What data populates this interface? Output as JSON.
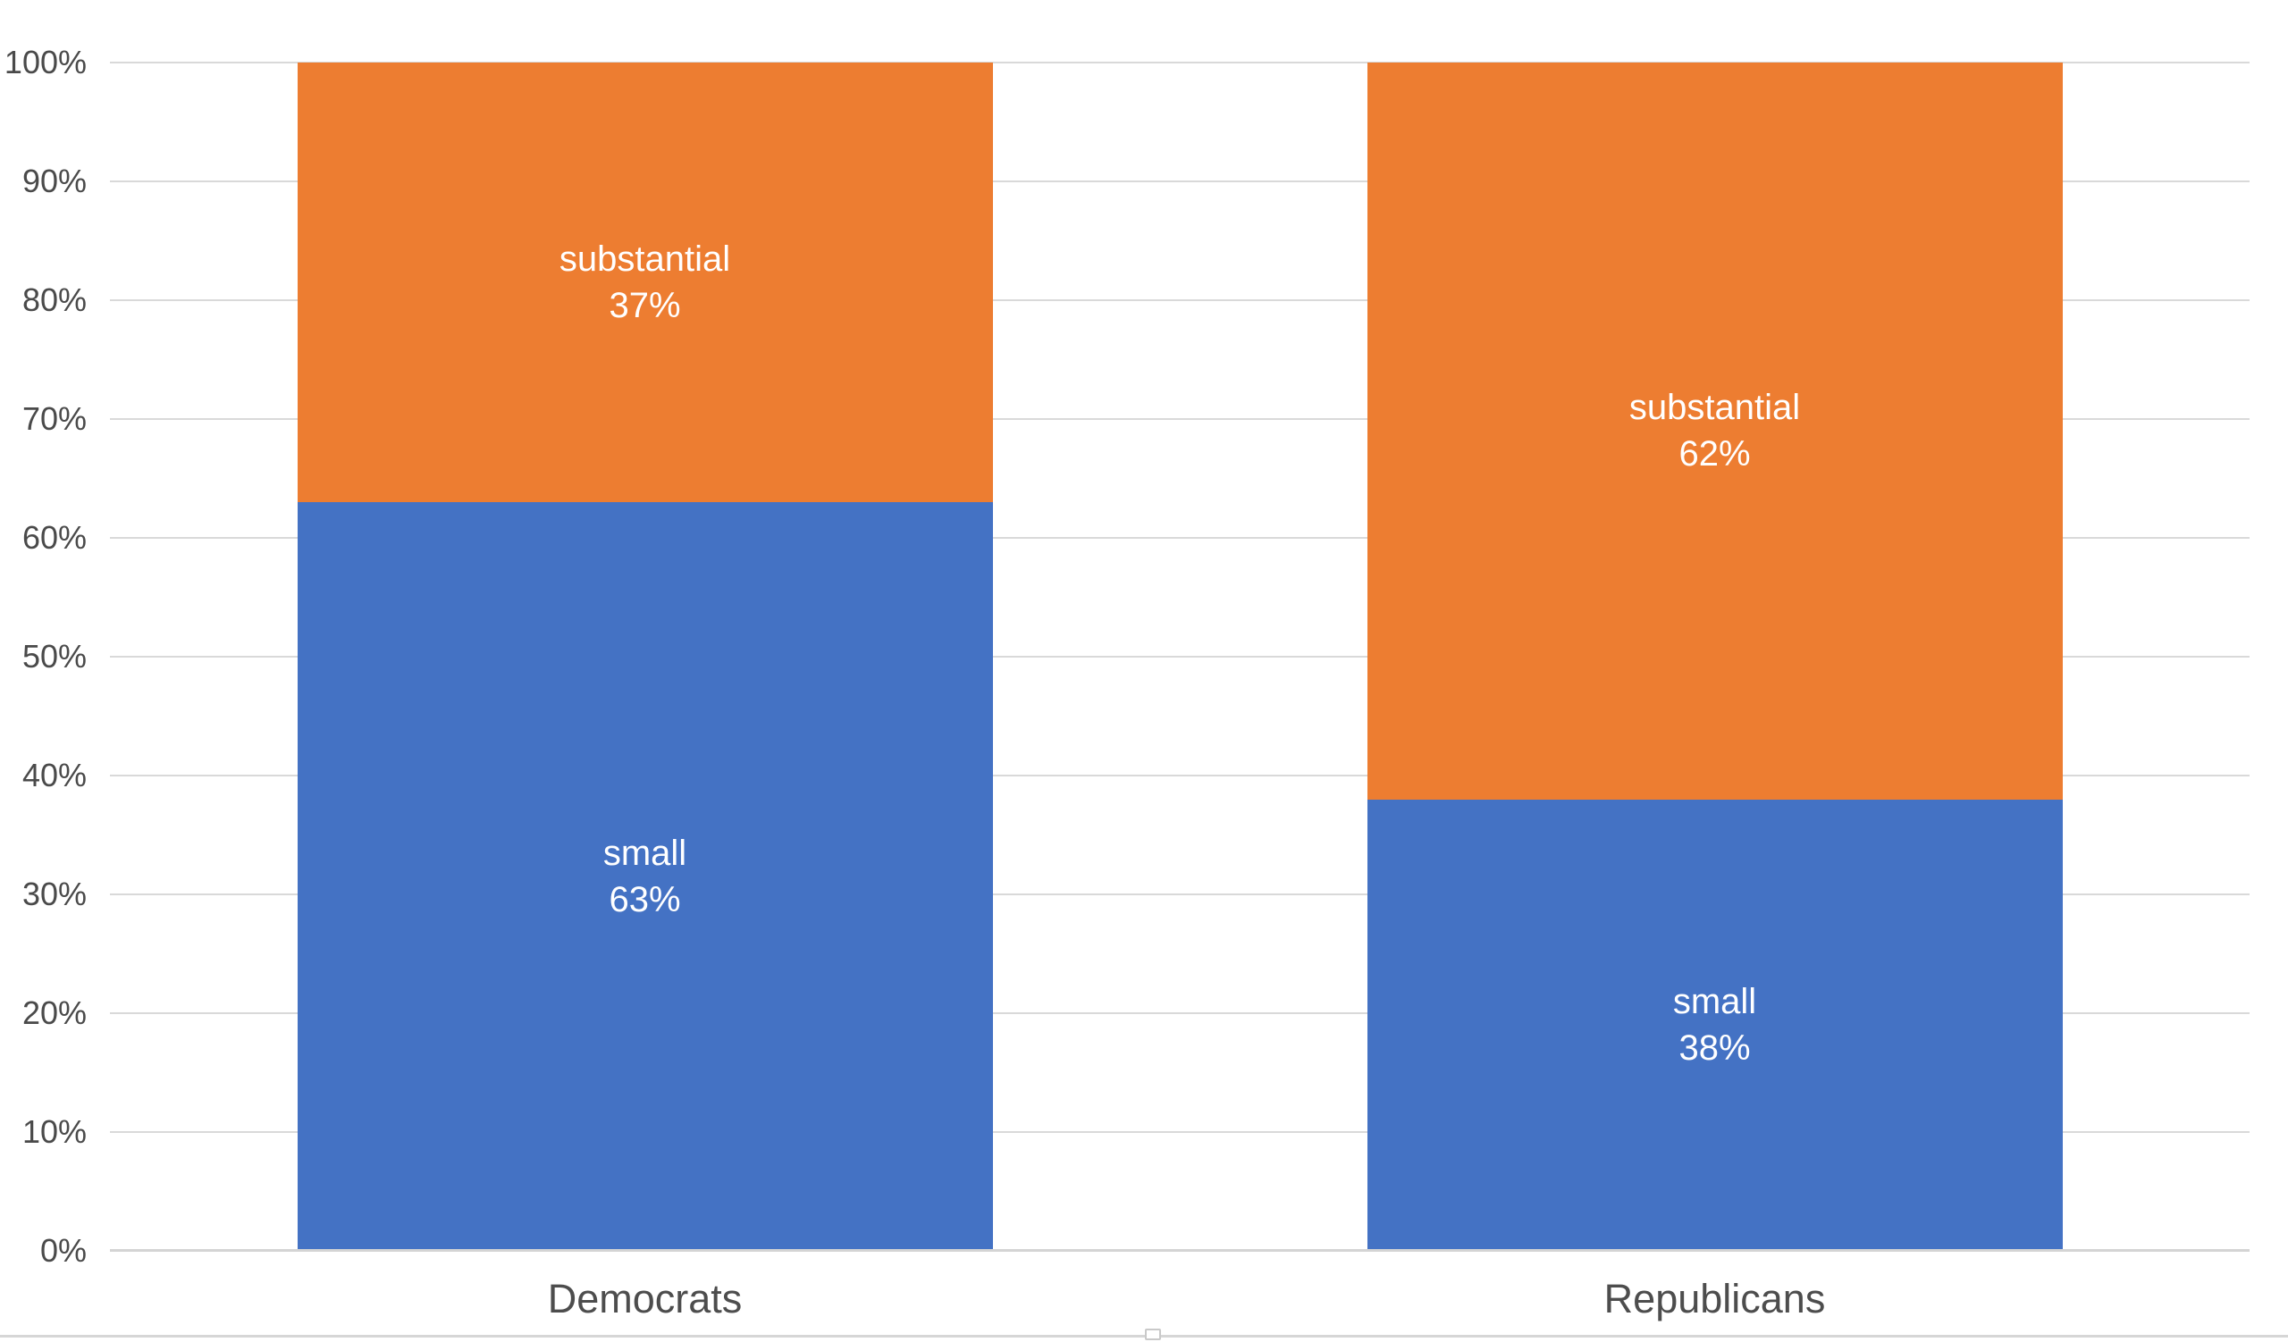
{
  "colors": {
    "background": "#ffffff",
    "series_blue": "#4472C4",
    "series_orange": "#ED7D31",
    "gridline": "#D9D9D9",
    "axis_line": "#D4D4D4",
    "tick_label": "#4A4A4A",
    "category_label": "#4D4D4D",
    "bar_label_text": "#FFFFFF",
    "divider_line": "#D6D6D6"
  },
  "chart_data": {
    "type": "bar",
    "subtype": "stacked-100-percent",
    "orientation": "vertical",
    "title": "",
    "xlabel": "",
    "ylabel": "",
    "grid": true,
    "legend": false,
    "ylim": [
      0,
      100
    ],
    "y_ticks": [
      "0%",
      "10%",
      "20%",
      "30%",
      "40%",
      "50%",
      "60%",
      "70%",
      "80%",
      "90%",
      "100%"
    ],
    "categories": [
      "Democrats",
      "Republicans"
    ],
    "series": [
      {
        "name": "small",
        "color_key": "series_blue",
        "values": [
          63,
          38
        ],
        "data_labels": [
          [
            "small",
            "63%"
          ],
          [
            "small",
            "38%"
          ]
        ]
      },
      {
        "name": "substantial",
        "color_key": "series_orange",
        "values": [
          37,
          62
        ],
        "data_labels": [
          [
            "substantial",
            "37%"
          ],
          [
            "substantial",
            "62%"
          ]
        ]
      }
    ]
  },
  "footer": {
    "divider_handle_name": "divider-drag-handle"
  }
}
